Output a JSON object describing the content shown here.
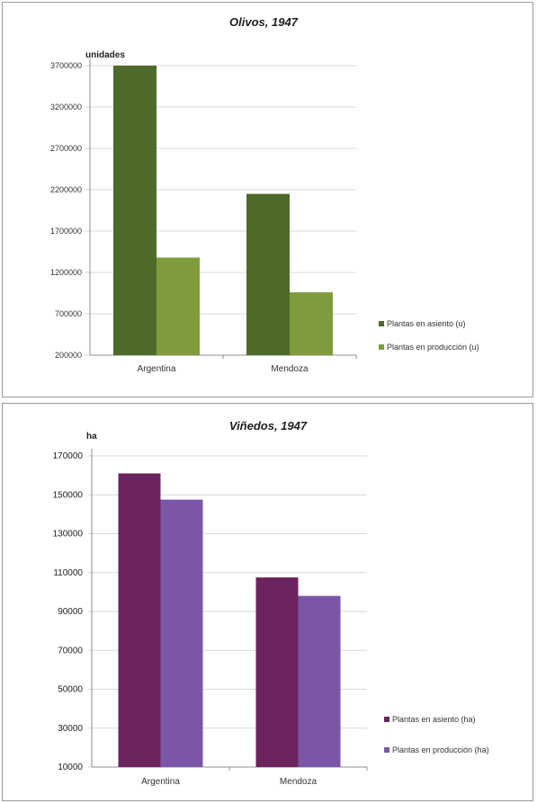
{
  "chart_data": [
    {
      "type": "bar",
      "title": "Olivos, 1947",
      "ylabel": "unidades",
      "xlabel": "",
      "categories": [
        "Argentina",
        "Mendoza"
      ],
      "series": [
        {
          "name": "Plantas en asiento (u)",
          "values": [
            3700000,
            2150000
          ],
          "color": "#4e6b2a"
        },
        {
          "name": "Plantas en producción (u)",
          "values": [
            1380000,
            960000
          ],
          "color": "#7e9c3c"
        }
      ],
      "ylim": [
        200000,
        3700000
      ],
      "yticks": [
        "3700000",
        "3200000",
        "2700000",
        "2200000",
        "1700000",
        "1200000",
        "700000",
        "200000"
      ],
      "grid": true,
      "legend": "right"
    },
    {
      "type": "bar",
      "title": "Viñedos, 1947",
      "ylabel": "ha",
      "xlabel": "",
      "categories": [
        "Argentina",
        "Mendoza"
      ],
      "series": [
        {
          "name": "Plantas en asiento (ha)",
          "values": [
            161000,
            107500
          ],
          "color": "#6b2460"
        },
        {
          "name": "Plantas en producción (ha)",
          "values": [
            147500,
            98000
          ],
          "color": "#7c56a6"
        }
      ],
      "ylim": [
        10000,
        170000
      ],
      "yticks": [
        "170000",
        "150000",
        "130000",
        "110000",
        "90000",
        "70000",
        "50000",
        "30000",
        "10000"
      ],
      "grid": true,
      "legend": "right"
    }
  ]
}
